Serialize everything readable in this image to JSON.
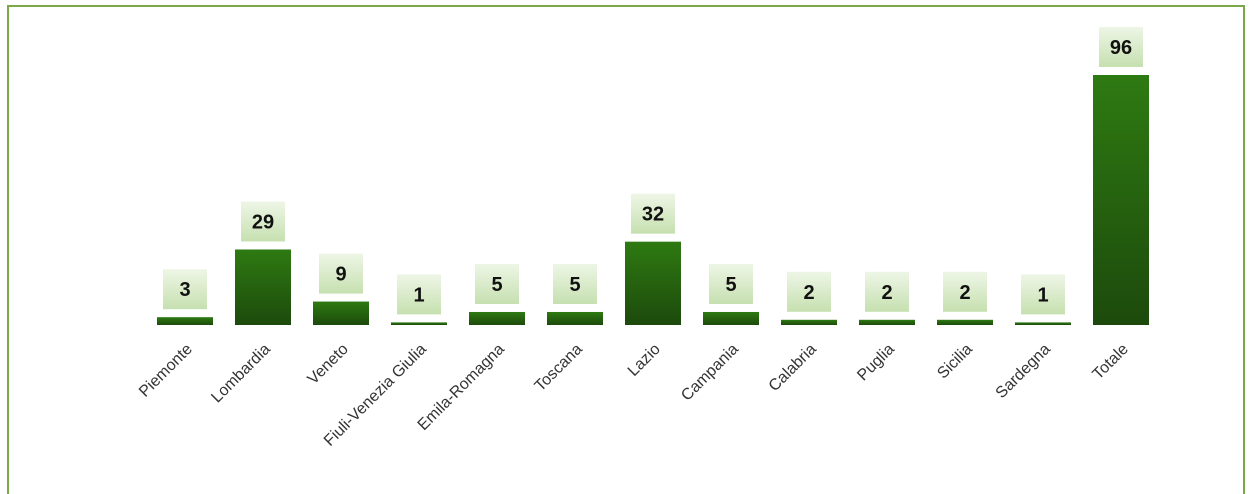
{
  "chart_data": {
    "type": "bar",
    "categories": [
      "Piemonte",
      "Lombardia",
      "Veneto",
      "Fiuli-Venezia Giulia",
      "Emila-Romagna",
      "Toscana",
      "Lazio",
      "Campania",
      "Calabria",
      "Puglia",
      "Sicilia",
      "Sardegna",
      "Totale"
    ],
    "values": [
      3,
      29,
      9,
      1,
      5,
      5,
      32,
      5,
      2,
      2,
      2,
      1,
      96
    ],
    "color": "#2a6e12"
  }
}
